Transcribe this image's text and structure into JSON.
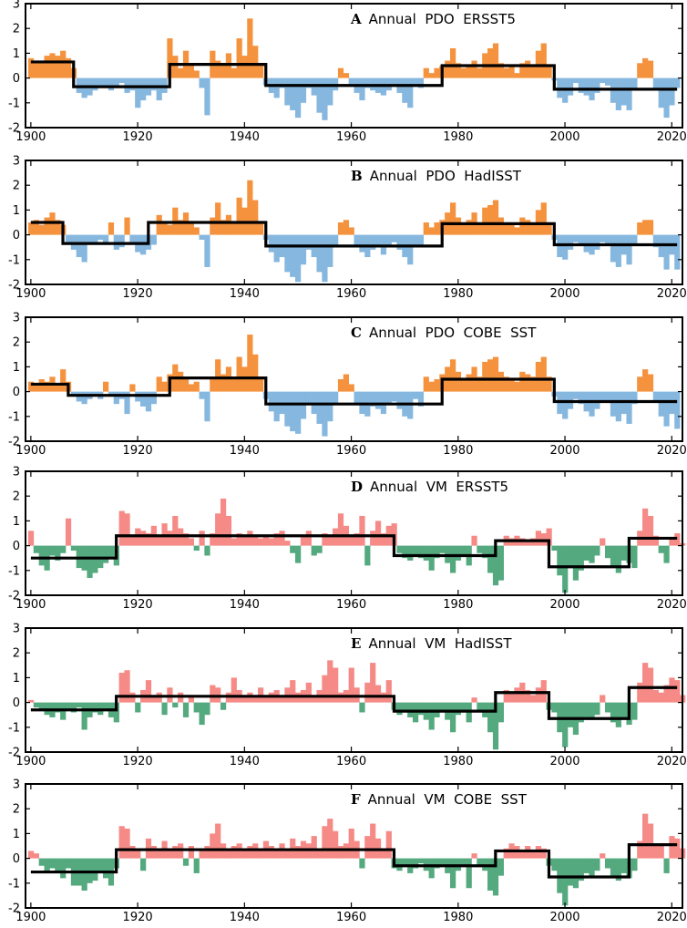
{
  "colors": {
    "pdo_positive": "#f5923e",
    "pdo_negative": "#86b7df",
    "vm_positive": "#f58a86",
    "vm_negative": "#54a97e",
    "step_line": "#000000"
  },
  "chart_data": [
    {
      "type": "bar",
      "letter": "A",
      "title": "Annual  PDO  ERSST5",
      "index": "PDO",
      "xlim": [
        1899,
        2022
      ],
      "ylim": [
        -2,
        3
      ],
      "xticks": [
        "1900",
        "1920",
        "1940",
        "1960",
        "1980",
        "2000",
        "2020"
      ],
      "yticks": [
        "-2",
        "-1",
        "0",
        "1",
        "2",
        "3"
      ],
      "start_year": 1900,
      "values": [
        0.8,
        0.7,
        0.6,
        0.9,
        1.0,
        0.9,
        1.1,
        0.8,
        0.4,
        -0.6,
        -0.8,
        -0.7,
        -0.5,
        -0.4,
        -0.3,
        -0.5,
        -0.4,
        -0.2,
        -0.6,
        -0.5,
        -1.2,
        -0.9,
        -0.7,
        -0.5,
        -0.9,
        -0.6,
        1.6,
        0.9,
        0.4,
        1.1,
        0.5,
        0.3,
        -0.4,
        -1.5,
        1.1,
        0.7,
        0.5,
        1.0,
        0.4,
        1.6,
        0.9,
        2.4,
        1.3,
        0.5,
        -0.3,
        -0.6,
        -0.8,
        -0.4,
        -1.1,
        -1.3,
        -1.6,
        -1.0,
        -0.4,
        -0.7,
        -1.4,
        -1.7,
        -1.1,
        -0.5,
        0.4,
        0.2,
        -0.3,
        -0.6,
        -0.9,
        -0.4,
        -0.5,
        -0.6,
        -0.7,
        -0.5,
        -0.3,
        -0.6,
        -1.0,
        -1.2,
        -0.3,
        -0.4,
        0.4,
        0.2,
        0.4,
        0.5,
        0.7,
        1.2,
        0.6,
        0.4,
        0.5,
        0.7,
        0.4,
        1.0,
        1.2,
        1.4,
        0.6,
        0.4,
        0.5,
        0.2,
        0.6,
        0.7,
        0.5,
        1.1,
        1.4,
        0.5,
        -0.1,
        -0.8,
        -1.0,
        -0.7,
        -0.2,
        -0.6,
        -0.7,
        -0.9,
        -0.6,
        -0.2,
        -0.3,
        -1.0,
        -1.3,
        -1.1,
        -1.3,
        -0.5,
        0.6,
        0.8,
        0.7,
        -0.5,
        -1.2,
        -1.6,
        -1.1,
        -0.4
      ],
      "step_segments": [
        {
          "start": 1900,
          "end": 1908,
          "level": 0.65
        },
        {
          "start": 1908,
          "end": 1926,
          "level": -0.35
        },
        {
          "start": 1926,
          "end": 1944,
          "level": 0.55
        },
        {
          "start": 1944,
          "end": 1977,
          "level": -0.3
        },
        {
          "start": 1977,
          "end": 1998,
          "level": 0.5
        },
        {
          "start": 1998,
          "end": 2021,
          "level": -0.45
        }
      ]
    },
    {
      "type": "bar",
      "letter": "B",
      "title": "Annual  PDO  HadISST",
      "index": "PDO",
      "xlim": [
        1899,
        2022
      ],
      "ylim": [
        -2,
        3
      ],
      "xticks": [
        "1900",
        "1920",
        "1940",
        "1960",
        "1980",
        "2000",
        "2020"
      ],
      "yticks": [
        "-2",
        "-1",
        "0",
        "1",
        "2",
        "3"
      ],
      "start_year": 1900,
      "values": [
        0.5,
        0.6,
        0.4,
        0.7,
        0.9,
        0.6,
        0.4,
        -0.3,
        -0.6,
        -0.9,
        -1.1,
        -0.4,
        -0.3,
        -0.2,
        -0.4,
        0.5,
        -0.6,
        -0.5,
        0.7,
        -0.3,
        -0.7,
        -0.8,
        -0.6,
        -0.4,
        0.8,
        0.5,
        0.4,
        1.1,
        0.6,
        0.9,
        0.5,
        0.3,
        -0.2,
        -1.3,
        0.7,
        1.3,
        0.6,
        0.8,
        0.5,
        1.5,
        1.1,
        2.2,
        1.4,
        0.5,
        -0.2,
        -0.7,
        -1.1,
        -0.9,
        -1.5,
        -1.7,
        -1.9,
        -1.2,
        -0.6,
        -0.9,
        -1.5,
        -1.9,
        -1.3,
        -0.4,
        0.5,
        0.6,
        0.3,
        -0.4,
        -0.7,
        -0.9,
        -0.6,
        -0.5,
        -0.8,
        -0.4,
        -0.3,
        -0.6,
        -0.9,
        -1.2,
        -0.4,
        -0.5,
        0.5,
        0.3,
        0.5,
        0.6,
        0.9,
        1.3,
        0.7,
        0.5,
        0.6,
        0.9,
        0.5,
        1.1,
        1.2,
        1.4,
        0.7,
        0.5,
        0.4,
        0.3,
        0.7,
        0.6,
        0.5,
        1.0,
        1.3,
        0.4,
        -0.2,
        -0.9,
        -1.0,
        -0.6,
        -0.3,
        -0.4,
        -0.7,
        -0.8,
        -0.6,
        -0.3,
        -0.4,
        -1.1,
        -1.3,
        -0.8,
        -1.2,
        -0.4,
        0.5,
        0.6,
        0.6,
        -0.5,
        -0.9,
        -1.4,
        -0.8,
        -1.4
      ],
      "step_segments": [
        {
          "start": 1900,
          "end": 1906,
          "level": 0.5
        },
        {
          "start": 1906,
          "end": 1922,
          "level": -0.35
        },
        {
          "start": 1922,
          "end": 1944,
          "level": 0.5
        },
        {
          "start": 1944,
          "end": 1977,
          "level": -0.45
        },
        {
          "start": 1977,
          "end": 1998,
          "level": 0.45
        },
        {
          "start": 1998,
          "end": 2021,
          "level": -0.4
        }
      ]
    },
    {
      "type": "bar",
      "letter": "C",
      "title": "Annual  PDO  COBE  SST",
      "index": "PDO",
      "xlim": [
        1899,
        2022
      ],
      "ylim": [
        -2,
        3
      ],
      "xticks": [
        "1900",
        "1920",
        "1940",
        "1960",
        "1980",
        "2000",
        "2020"
      ],
      "yticks": [
        "-2",
        "-1",
        "0",
        "1",
        "2",
        "3"
      ],
      "start_year": 1900,
      "values": [
        0.4,
        0.3,
        0.5,
        0.4,
        0.6,
        0.3,
        0.9,
        0.4,
        -0.2,
        -0.4,
        -0.5,
        -0.3,
        -0.2,
        -0.3,
        0.4,
        -0.2,
        -0.5,
        -0.3,
        -0.9,
        0.3,
        -0.4,
        -0.6,
        -0.8,
        -0.5,
        0.6,
        0.4,
        0.7,
        1.1,
        0.8,
        0.5,
        0.3,
        0.4,
        -0.3,
        -1.2,
        0.5,
        1.3,
        0.7,
        1.0,
        0.6,
        1.4,
        1.0,
        2.3,
        1.5,
        0.5,
        -0.3,
        -0.8,
        -1.2,
        -0.9,
        -1.4,
        -1.6,
        -1.7,
        -1.1,
        -0.5,
        -0.9,
        -1.3,
        -1.8,
        -1.2,
        -0.5,
        0.5,
        0.7,
        0.3,
        -0.5,
        -0.9,
        -1.0,
        -0.6,
        -0.7,
        -0.9,
        -0.5,
        -0.4,
        -0.7,
        -1.0,
        -1.1,
        -0.3,
        -0.6,
        0.6,
        0.4,
        0.5,
        0.7,
        1.0,
        1.3,
        0.8,
        0.5,
        0.7,
        1.0,
        0.6,
        1.2,
        1.3,
        1.4,
        0.8,
        0.6,
        0.5,
        0.4,
        0.8,
        0.7,
        0.6,
        1.2,
        1.4,
        0.6,
        -0.2,
        -0.9,
        -1.1,
        -0.7,
        -0.3,
        -0.5,
        -0.8,
        -1.0,
        -0.7,
        -0.4,
        -0.4,
        -1.0,
        -1.2,
        -0.9,
        -1.3,
        -0.5,
        0.6,
        0.9,
        0.7,
        -0.4,
        -1.0,
        -1.4,
        -0.9,
        -1.5
      ],
      "step_segments": [
        {
          "start": 1900,
          "end": 1907,
          "level": 0.3
        },
        {
          "start": 1907,
          "end": 1926,
          "level": -0.15
        },
        {
          "start": 1926,
          "end": 1944,
          "level": 0.55
        },
        {
          "start": 1944,
          "end": 1977,
          "level": -0.5
        },
        {
          "start": 1977,
          "end": 1998,
          "level": 0.5
        },
        {
          "start": 1998,
          "end": 2021,
          "level": -0.4
        }
      ]
    },
    {
      "type": "bar",
      "letter": "D",
      "title": "Annual  VM  ERSST5",
      "index": "VM",
      "xlim": [
        1899,
        2022
      ],
      "ylim": [
        -2,
        3
      ],
      "xticks": [
        "1900",
        "1920",
        "1940",
        "1960",
        "1980",
        "2000",
        "2020"
      ],
      "yticks": [
        "-2",
        "-1",
        "0",
        "1",
        "2",
        "3"
      ],
      "start_year": 1900,
      "values": [
        0.6,
        -0.3,
        -0.8,
        -1.0,
        -0.4,
        -0.6,
        -0.3,
        1.1,
        -0.2,
        -0.9,
        -1.0,
        -1.3,
        -1.1,
        -0.9,
        -0.7,
        -0.5,
        -0.8,
        1.4,
        1.3,
        0.4,
        0.7,
        0.6,
        0.5,
        0.8,
        0.4,
        0.9,
        0.6,
        1.2,
        0.7,
        0.5,
        0.3,
        -0.2,
        0.6,
        -0.4,
        0.5,
        1.3,
        1.9,
        1.2,
        0.3,
        0.5,
        0.4,
        0.6,
        0.4,
        0.3,
        0.4,
        0.3,
        0.5,
        0.6,
        0.2,
        -0.3,
        -0.7,
        0.4,
        0.6,
        -0.4,
        -0.3,
        0.5,
        0.4,
        0.7,
        1.3,
        0.8,
        0.4,
        0.5,
        1.2,
        -0.8,
        0.6,
        1.0,
        0.5,
        0.8,
        0.9,
        -0.3,
        -0.5,
        -0.6,
        -0.4,
        -0.5,
        -0.6,
        -1.0,
        -0.5,
        -0.3,
        -0.7,
        -1.1,
        -0.6,
        -0.4,
        -0.8,
        0.4,
        -0.3,
        -0.5,
        -1.1,
        -1.6,
        -1.4,
        0.4,
        0.3,
        0.4,
        0.3,
        0.2,
        0.3,
        0.6,
        0.5,
        0.7,
        -0.2,
        -1.2,
        -1.9,
        -0.9,
        -1.4,
        -1.0,
        -0.6,
        -0.7,
        -0.4,
        0.3,
        -0.5,
        -0.9,
        -1.1,
        -0.6,
        -0.7,
        -0.9,
        0.6,
        1.5,
        1.2,
        0.4,
        -0.3,
        -0.7,
        0.3,
        0.5,
        0.1
      ],
      "step_segments": [
        {
          "start": 1900,
          "end": 1916,
          "level": -0.5
        },
        {
          "start": 1916,
          "end": 1968,
          "level": 0.4
        },
        {
          "start": 1968,
          "end": 1987,
          "level": -0.4
        },
        {
          "start": 1987,
          "end": 1997,
          "level": 0.2
        },
        {
          "start": 1997,
          "end": 2012,
          "level": -0.85
        },
        {
          "start": 2012,
          "end": 2021,
          "level": 0.3
        }
      ]
    },
    {
      "type": "bar",
      "letter": "E",
      "title": "Annual  VM  HadISST",
      "index": "VM",
      "xlim": [
        1899,
        2022
      ],
      "ylim": [
        -2,
        3
      ],
      "xticks": [
        "1900",
        "1920",
        "1940",
        "1960",
        "1980",
        "2000",
        "2020"
      ],
      "yticks": [
        "-2",
        "-1",
        "0",
        "1",
        "2",
        "3"
      ],
      "start_year": 1900,
      "values": [
        0.1,
        -0.2,
        -0.3,
        -0.5,
        -0.6,
        -0.4,
        -0.7,
        -0.3,
        -0.4,
        -0.2,
        -1.1,
        -0.6,
        -0.4,
        -0.5,
        -0.3,
        -0.6,
        -0.8,
        1.2,
        1.3,
        0.4,
        -0.4,
        0.5,
        0.9,
        0.3,
        0.4,
        -0.5,
        0.6,
        -0.2,
        0.4,
        -0.6,
        0.3,
        -0.4,
        -0.9,
        -0.5,
        0.7,
        0.6,
        -0.3,
        0.4,
        1.0,
        0.5,
        0.3,
        0.4,
        0.2,
        0.6,
        0.3,
        0.4,
        0.5,
        0.3,
        0.6,
        0.9,
        0.4,
        0.5,
        0.8,
        0.3,
        0.5,
        1.1,
        1.7,
        1.4,
        0.4,
        0.5,
        1.4,
        0.6,
        -0.4,
        0.8,
        1.6,
        0.7,
        0.4,
        0.9,
        -0.3,
        -0.5,
        -0.4,
        -0.6,
        -0.8,
        -0.5,
        -0.7,
        -1.1,
        -0.6,
        -0.4,
        -0.7,
        -1.2,
        -0.5,
        -0.4,
        -0.8,
        0.2,
        -0.3,
        -0.6,
        -1.2,
        -1.9,
        -0.8,
        0.5,
        0.4,
        0.6,
        0.8,
        0.5,
        0.3,
        0.6,
        0.9,
        -0.3,
        -0.4,
        -1.2,
        -1.8,
        -1.0,
        -1.3,
        -0.8,
        -0.6,
        -0.7,
        -0.5,
        0.3,
        -0.4,
        -0.8,
        -1.0,
        -0.6,
        -0.9,
        -0.7,
        0.8,
        1.6,
        1.4,
        0.5,
        0.4,
        0.7,
        1.0,
        0.9,
        0.3
      ],
      "step_segments": [
        {
          "start": 1900,
          "end": 1916,
          "level": -0.3
        },
        {
          "start": 1916,
          "end": 1968,
          "level": 0.25
        },
        {
          "start": 1968,
          "end": 1987,
          "level": -0.35
        },
        {
          "start": 1987,
          "end": 1997,
          "level": 0.4
        },
        {
          "start": 1997,
          "end": 2012,
          "level": -0.65
        },
        {
          "start": 2012,
          "end": 2021,
          "level": 0.6
        }
      ]
    },
    {
      "type": "bar",
      "letter": "F",
      "title": "Annual  VM  COBE  SST",
      "index": "VM",
      "xlim": [
        1899,
        2022
      ],
      "ylim": [
        -2,
        3
      ],
      "xticks": [
        "1900",
        "1920",
        "1940",
        "1960",
        "1980",
        "2000",
        "2020"
      ],
      "yticks": [
        "-2",
        "-1",
        "0",
        "1",
        "2",
        "3"
      ],
      "start_year": 1900,
      "values": [
        0.3,
        0.2,
        -0.3,
        -0.5,
        -0.4,
        -0.5,
        -0.8,
        -0.4,
        -1.1,
        -1.1,
        -1.3,
        -1.0,
        -0.9,
        -0.6,
        -0.8,
        -1.1,
        -0.4,
        1.3,
        1.2,
        0.5,
        0.4,
        -0.5,
        0.8,
        0.5,
        0.3,
        0.7,
        0.4,
        0.5,
        0.6,
        -0.3,
        0.5,
        -0.6,
        0.4,
        0.5,
        1.0,
        1.4,
        0.6,
        0.3,
        0.5,
        0.6,
        0.3,
        0.5,
        0.6,
        0.4,
        0.7,
        0.5,
        0.4,
        0.6,
        0.3,
        0.8,
        0.5,
        0.7,
        0.6,
        0.9,
        0.4,
        1.3,
        1.6,
        1.1,
        0.5,
        0.6,
        1.2,
        0.7,
        -0.4,
        0.9,
        1.4,
        0.8,
        0.4,
        1.1,
        -0.4,
        -0.5,
        -0.3,
        -0.6,
        -0.4,
        -0.2,
        -0.5,
        -0.8,
        -0.4,
        -0.3,
        -0.6,
        -1.2,
        -0.5,
        -0.3,
        -1.2,
        0.2,
        -0.3,
        -0.5,
        -1.3,
        -1.5,
        -0.7,
        0.4,
        0.6,
        0.5,
        0.3,
        0.5,
        0.3,
        0.5,
        0.4,
        -0.3,
        -0.5,
        -1.4,
        -1.9,
        -1.1,
        -1.2,
        -0.9,
        -0.6,
        -0.8,
        -0.5,
        0.2,
        -0.4,
        -0.8,
        -0.9,
        -0.6,
        -0.8,
        -0.5,
        0.7,
        1.8,
        1.4,
        0.6,
        0.5,
        -0.6,
        0.9,
        0.8,
        0.4
      ],
      "step_segments": [
        {
          "start": 1900,
          "end": 1916,
          "level": -0.55
        },
        {
          "start": 1916,
          "end": 1968,
          "level": 0.35
        },
        {
          "start": 1968,
          "end": 1987,
          "level": -0.3
        },
        {
          "start": 1987,
          "end": 1997,
          "level": 0.3
        },
        {
          "start": 1997,
          "end": 2012,
          "level": -0.75
        },
        {
          "start": 2012,
          "end": 2021,
          "level": 0.55
        }
      ]
    }
  ]
}
